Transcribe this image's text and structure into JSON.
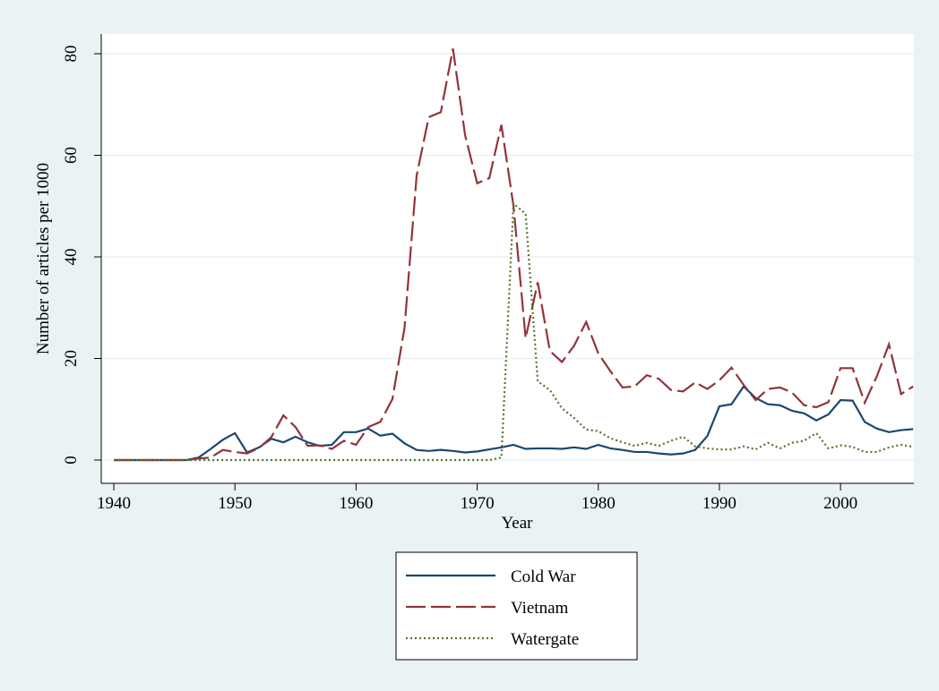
{
  "chart_data": {
    "type": "line",
    "x": [
      1940,
      1941,
      1942,
      1943,
      1944,
      1945,
      1946,
      1947,
      1948,
      1949,
      1950,
      1951,
      1952,
      1953,
      1954,
      1955,
      1956,
      1957,
      1958,
      1959,
      1960,
      1961,
      1962,
      1963,
      1964,
      1965,
      1966,
      1967,
      1968,
      1969,
      1970,
      1971,
      1972,
      1973,
      1974,
      1975,
      1976,
      1977,
      1978,
      1979,
      1980,
      1981,
      1982,
      1983,
      1984,
      1985,
      1986,
      1987,
      1988,
      1989,
      1990,
      1991,
      1992,
      1993,
      1994,
      1995,
      1996,
      1997,
      1998,
      1999,
      2000,
      2001,
      2002,
      2003,
      2004,
      2005,
      2006
    ],
    "series": [
      {
        "name": "Cold War",
        "color": "#1a476f",
        "dash": "solid",
        "values": [
          0,
          0,
          0,
          0,
          0,
          0,
          0,
          0.5,
          2.2,
          4,
          5.3,
          1.5,
          2.5,
          4.2,
          3.5,
          4.6,
          3.5,
          2.8,
          3,
          5.5,
          5.5,
          6.2,
          4.8,
          5.2,
          3.3,
          2,
          1.8,
          2,
          1.8,
          1.5,
          1.7,
          2.1,
          2.5,
          3,
          2.2,
          2.3,
          2.3,
          2.2,
          2.5,
          2.2,
          3,
          2.3,
          2,
          1.6,
          1.6,
          1.3,
          1.1,
          1.3,
          2,
          4.7,
          10.6,
          11,
          14.5,
          12.2,
          11,
          10.8,
          9.7,
          9.2,
          7.8,
          9,
          11.8,
          11.7,
          7.5,
          6.2,
          5.5,
          5.9,
          6.1
        ]
      },
      {
        "name": "Vietnam",
        "color": "#90353b",
        "dash": "dash",
        "values": [
          0,
          0,
          0,
          0,
          0,
          0,
          0,
          0.3,
          0.5,
          2,
          1.6,
          1.3,
          2.4,
          4.5,
          8.8,
          6.5,
          2.8,
          2.9,
          2.2,
          3.8,
          3,
          6.5,
          7.5,
          12,
          26,
          56,
          67.5,
          68.5,
          81,
          64,
          54.5,
          55.5,
          66,
          50,
          24,
          35,
          21.5,
          19.3,
          22.5,
          27.2,
          21,
          17.5,
          14.3,
          14.5,
          16.7,
          16,
          13.8,
          13.5,
          15.3,
          14,
          15.7,
          18.2,
          14.8,
          11.8,
          14,
          14.3,
          13.3,
          10.8,
          10.4,
          11.4,
          18.1,
          18.1,
          11.3,
          16.5,
          22.8,
          13,
          14.5
        ]
      },
      {
        "name": "Watergate",
        "color": "#55752f",
        "dash": "dot",
        "values": [
          0,
          0,
          0,
          0,
          0,
          0,
          0,
          0,
          0,
          0,
          0,
          0,
          0,
          0,
          0,
          0,
          0,
          0,
          0,
          0,
          0,
          0,
          0,
          0,
          0,
          0,
          0,
          0,
          0,
          0,
          0,
          0,
          0.5,
          50.5,
          48.5,
          15.5,
          13.8,
          10.2,
          8.3,
          6,
          5.7,
          4.3,
          3.5,
          2.8,
          3.4,
          2.8,
          3.8,
          4.6,
          2.7,
          2.3,
          2.1,
          2.1,
          2.7,
          2.1,
          3.4,
          2.3,
          3.4,
          3.8,
          5.3,
          2.3,
          2.9,
          2.6,
          1.6,
          1.6,
          2.5,
          3,
          2.6
        ]
      }
    ],
    "xlabel": "Year",
    "ylabel": "Number of articles per 1000",
    "xlim": [
      1938.96,
      2006.06
    ],
    "ylim": [
      -4.58,
      83.88
    ],
    "xticks": [
      1940,
      1950,
      1960,
      1970,
      1980,
      1990,
      2000
    ],
    "yticks": [
      0,
      20,
      40,
      60,
      80
    ],
    "grid": true
  }
}
